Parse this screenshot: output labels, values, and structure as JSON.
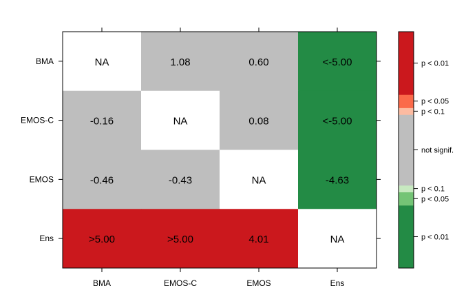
{
  "chart_data": {
    "type": "heatmap",
    "rows": [
      "BMA",
      "EMOS-C",
      "EMOS",
      "Ens"
    ],
    "columns": [
      "BMA",
      "EMOS-C",
      "EMOS",
      "Ens"
    ],
    "cells": [
      [
        {
          "label": "NA",
          "color": "#ffffff"
        },
        {
          "label": "1.08",
          "color": "#bebebe"
        },
        {
          "label": "0.60",
          "color": "#bebebe"
        },
        {
          "label": "<-5.00",
          "color": "#238b45"
        }
      ],
      [
        {
          "label": "-0.16",
          "color": "#bebebe"
        },
        {
          "label": "NA",
          "color": "#ffffff"
        },
        {
          "label": "0.08",
          "color": "#bebebe"
        },
        {
          "label": "<-5.00",
          "color": "#238b45"
        }
      ],
      [
        {
          "label": "-0.46",
          "color": "#bebebe"
        },
        {
          "label": "-0.43",
          "color": "#bebebe"
        },
        {
          "label": "NA",
          "color": "#ffffff"
        },
        {
          "label": "-4.63",
          "color": "#238b45"
        }
      ],
      [
        {
          "label": ">5.00",
          "color": "#cb181d"
        },
        {
          "label": ">5.00",
          "color": "#cb181d"
        },
        {
          "label": "4.01",
          "color": "#cb181d"
        },
        {
          "label": "NA",
          "color": "#ffffff"
        }
      ]
    ],
    "colorkey": {
      "range": [
        -5.5,
        5.5
      ],
      "bands": [
        {
          "from": -5.5,
          "to": -2.576,
          "color": "#238b45"
        },
        {
          "from": -2.576,
          "to": -1.96,
          "color": "#74c476"
        },
        {
          "from": -1.96,
          "to": -1.645,
          "color": "#c7e9c0"
        },
        {
          "from": -1.645,
          "to": 1.645,
          "color": "#bebebe"
        },
        {
          "from": 1.645,
          "to": 1.96,
          "color": "#fcbba1"
        },
        {
          "from": 1.96,
          "to": 2.576,
          "color": "#fb6a4a"
        },
        {
          "from": 2.576,
          "to": 5.5,
          "color": "#cb181d"
        }
      ],
      "labels": [
        {
          "text": "p < 0.01",
          "value": 4.04
        },
        {
          "text": "p < 0.05",
          "value": 2.27
        },
        {
          "text": "p < 0.1",
          "value": 1.8
        },
        {
          "text": "not signif.",
          "value": 0.0
        },
        {
          "text": "p < 0.1",
          "value": -1.8
        },
        {
          "text": "p < 0.05",
          "value": -2.27
        },
        {
          "text": "p < 0.01",
          "value": -4.04
        }
      ]
    }
  }
}
